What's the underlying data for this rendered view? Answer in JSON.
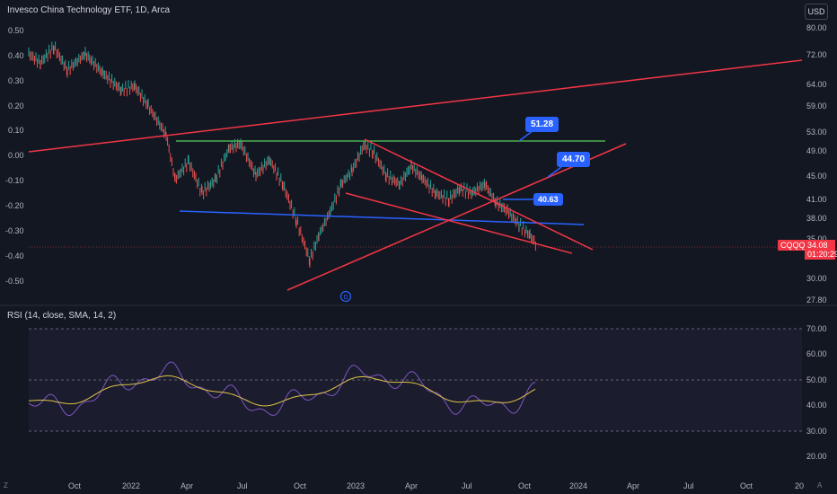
{
  "header": {
    "title": "Invesco China Technology ETF, 1D, Arca",
    "currency": "USD"
  },
  "price_scale": [
    "80.00",
    "72.00",
    "64.00",
    "59.00",
    "53.00",
    "49.00",
    "45.00",
    "41.00",
    "38.00",
    "35.00",
    "30.00",
    "27.80"
  ],
  "percent_scale": [
    "0.50",
    "0.40",
    "0.30",
    "0.20",
    "0.10",
    "0.00",
    "-0.10",
    "-0.20",
    "-0.30",
    "-0.40",
    "-0.50"
  ],
  "price_badge": {
    "ticker": "CQQQ",
    "price": "34.08",
    "countdown": "01:20:29"
  },
  "callouts": {
    "a": "51.28",
    "b": "44.70",
    "c": "40.63"
  },
  "event_marker": "D",
  "rsi": {
    "title": "RSI (14, close, SMA, 14, 2)",
    "scale": [
      "70.00",
      "60.00",
      "50.00",
      "40.00",
      "30.00",
      "20.00"
    ]
  },
  "time_axis": [
    "Oct",
    "2022",
    "Apr",
    "Jul",
    "Oct",
    "2023",
    "Apr",
    "Jul",
    "Oct",
    "2024",
    "Apr",
    "Jul",
    "Oct",
    "20"
  ],
  "footer": {
    "left_icon": "Z",
    "right_icon": "A"
  },
  "colors": {
    "background": "#131722",
    "candle_up": "#26a69a",
    "candle_down": "#ef5350",
    "trend_red": "#f23645",
    "support_blue": "#2962ff",
    "resistance_green": "#4caf50",
    "rsi_line": "#7e57c2",
    "rsi_ma": "#e0c34a"
  }
}
